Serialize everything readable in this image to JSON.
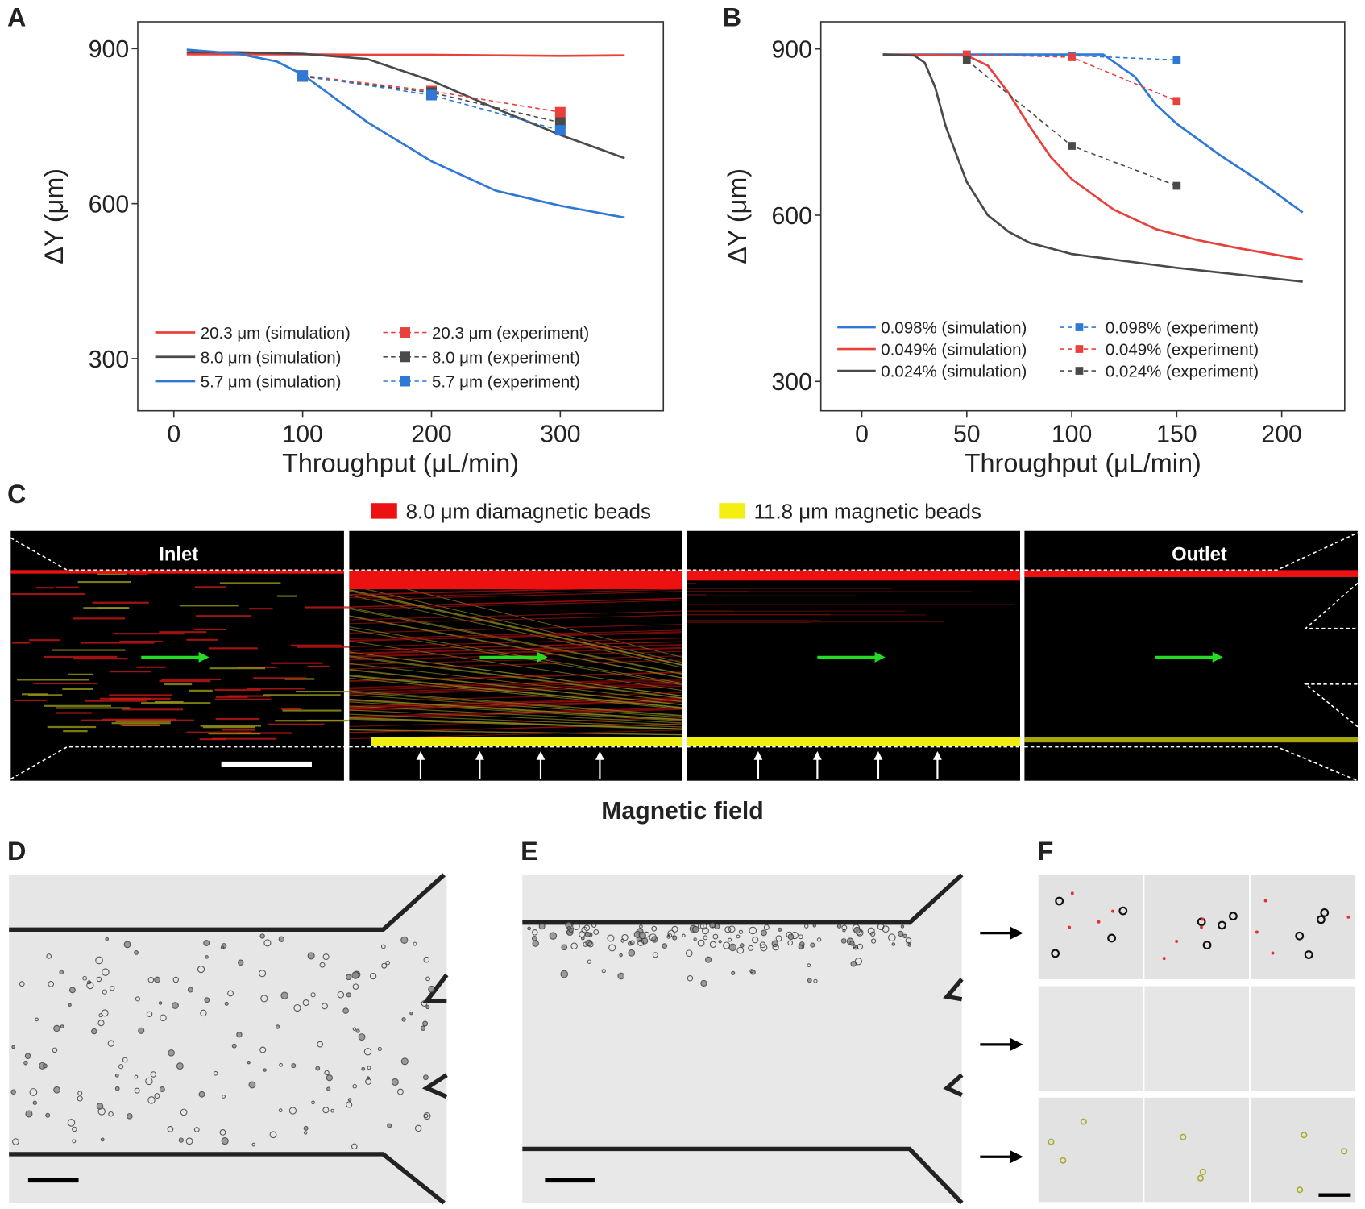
{
  "chart_data": [
    {
      "type": "line",
      "label": "A",
      "xlabel": "Throughput (μL/min)",
      "ylabel": "ΔY (μm)",
      "xlim": [
        -28,
        380
      ],
      "ylim": [
        199,
        952
      ],
      "xticks": [
        0,
        100,
        200,
        300
      ],
      "yticks": [
        300,
        600,
        900
      ],
      "marker_size": 12,
      "series": [
        {
          "name": "20.3 μm (simulation)",
          "color": "#e8413c",
          "linestyle": "solid",
          "x": [
            10,
            50,
            100,
            150,
            200,
            250,
            300,
            350
          ],
          "values": [
            889,
            889,
            889,
            888,
            888,
            887,
            886,
            887
          ]
        },
        {
          "name": "8.0 μm (simulation)",
          "color": "#4a4a4a",
          "linestyle": "solid",
          "x": [
            10,
            50,
            100,
            150,
            200,
            250,
            300,
            350
          ],
          "values": [
            893,
            893,
            890,
            880,
            838,
            784,
            733,
            688
          ]
        },
        {
          "name": "5.7 μm (simulation)",
          "color": "#2f78d6",
          "linestyle": "solid",
          "x": [
            10,
            50,
            80,
            100,
            150,
            200,
            250,
            300,
            350
          ],
          "values": [
            898,
            890,
            875,
            850,
            758,
            682,
            625,
            596,
            573
          ]
        },
        {
          "name": "20.3 μm (experiment)",
          "color": "#e8413c",
          "linestyle": "dashed",
          "marker": "square",
          "x": [
            100,
            200,
            300
          ],
          "values": [
            848,
            818,
            777
          ]
        },
        {
          "name": "8.0 μm (experiment)",
          "color": "#4a4a4a",
          "linestyle": "dashed",
          "marker": "square",
          "x": [
            100,
            200,
            300
          ],
          "values": [
            846,
            815,
            757
          ]
        },
        {
          "name": "5.7 μm (experiment)",
          "color": "#2f78d6",
          "linestyle": "dashed",
          "marker": "square",
          "x": [
            100,
            200,
            300
          ],
          "values": [
            848,
            810,
            742
          ]
        }
      ]
    },
    {
      "type": "line",
      "label": "B",
      "xlabel": "Throughput (μL/min)",
      "ylabel": "ΔY (μm)",
      "xlim": [
        -19.5,
        230
      ],
      "ylim": [
        247,
        949
      ],
      "xticks": [
        0,
        50,
        100,
        150,
        200
      ],
      "yticks": [
        300,
        600,
        900
      ],
      "marker_size": 9,
      "series": [
        {
          "name": "0.098% (simulation)",
          "color": "#2f78d6",
          "linestyle": "solid",
          "x": [
            10,
            50,
            100,
            115,
            130,
            140,
            150,
            170,
            190,
            210
          ],
          "values": [
            890,
            890,
            890,
            890,
            850,
            800,
            765,
            710,
            660,
            605
          ]
        },
        {
          "name": "0.049% (simulation)",
          "color": "#e8413c",
          "linestyle": "solid",
          "x": [
            10,
            50,
            60,
            70,
            80,
            90,
            100,
            120,
            140,
            160,
            180,
            210
          ],
          "values": [
            890,
            888,
            870,
            820,
            760,
            705,
            665,
            610,
            575,
            555,
            540,
            520
          ]
        },
        {
          "name": "0.024% (simulation)",
          "color": "#4a4a4a",
          "linestyle": "solid",
          "x": [
            10,
            25,
            30,
            35,
            40,
            50,
            60,
            70,
            80,
            100,
            150,
            210
          ],
          "values": [
            890,
            888,
            875,
            830,
            760,
            660,
            600,
            570,
            550,
            530,
            505,
            480
          ]
        },
        {
          "name": "0.098% (experiment)",
          "color": "#2f78d6",
          "linestyle": "dashed",
          "marker": "square",
          "x": [
            50,
            100,
            150
          ],
          "values": [
            890,
            888,
            880
          ]
        },
        {
          "name": "0.049% (experiment)",
          "color": "#e8413c",
          "linestyle": "dashed",
          "marker": "square",
          "x": [
            50,
            100,
            150
          ],
          "values": [
            890,
            885,
            806
          ]
        },
        {
          "name": "0.024% (experiment)",
          "color": "#4a4a4a",
          "linestyle": "dashed",
          "marker": "square",
          "x": [
            50,
            100,
            150
          ],
          "values": [
            880,
            725,
            653
          ]
        }
      ]
    }
  ],
  "panels": {
    "C": {
      "label": "C",
      "legend": [
        "8.0 μm diamagnetic beads",
        "11.8 μm magnetic beads"
      ],
      "inlet": "Inlet",
      "outlet": "Outlet",
      "field": "Magnetic field"
    },
    "D": {
      "label": "D"
    },
    "E": {
      "label": "E"
    },
    "F": {
      "label": "F"
    }
  }
}
